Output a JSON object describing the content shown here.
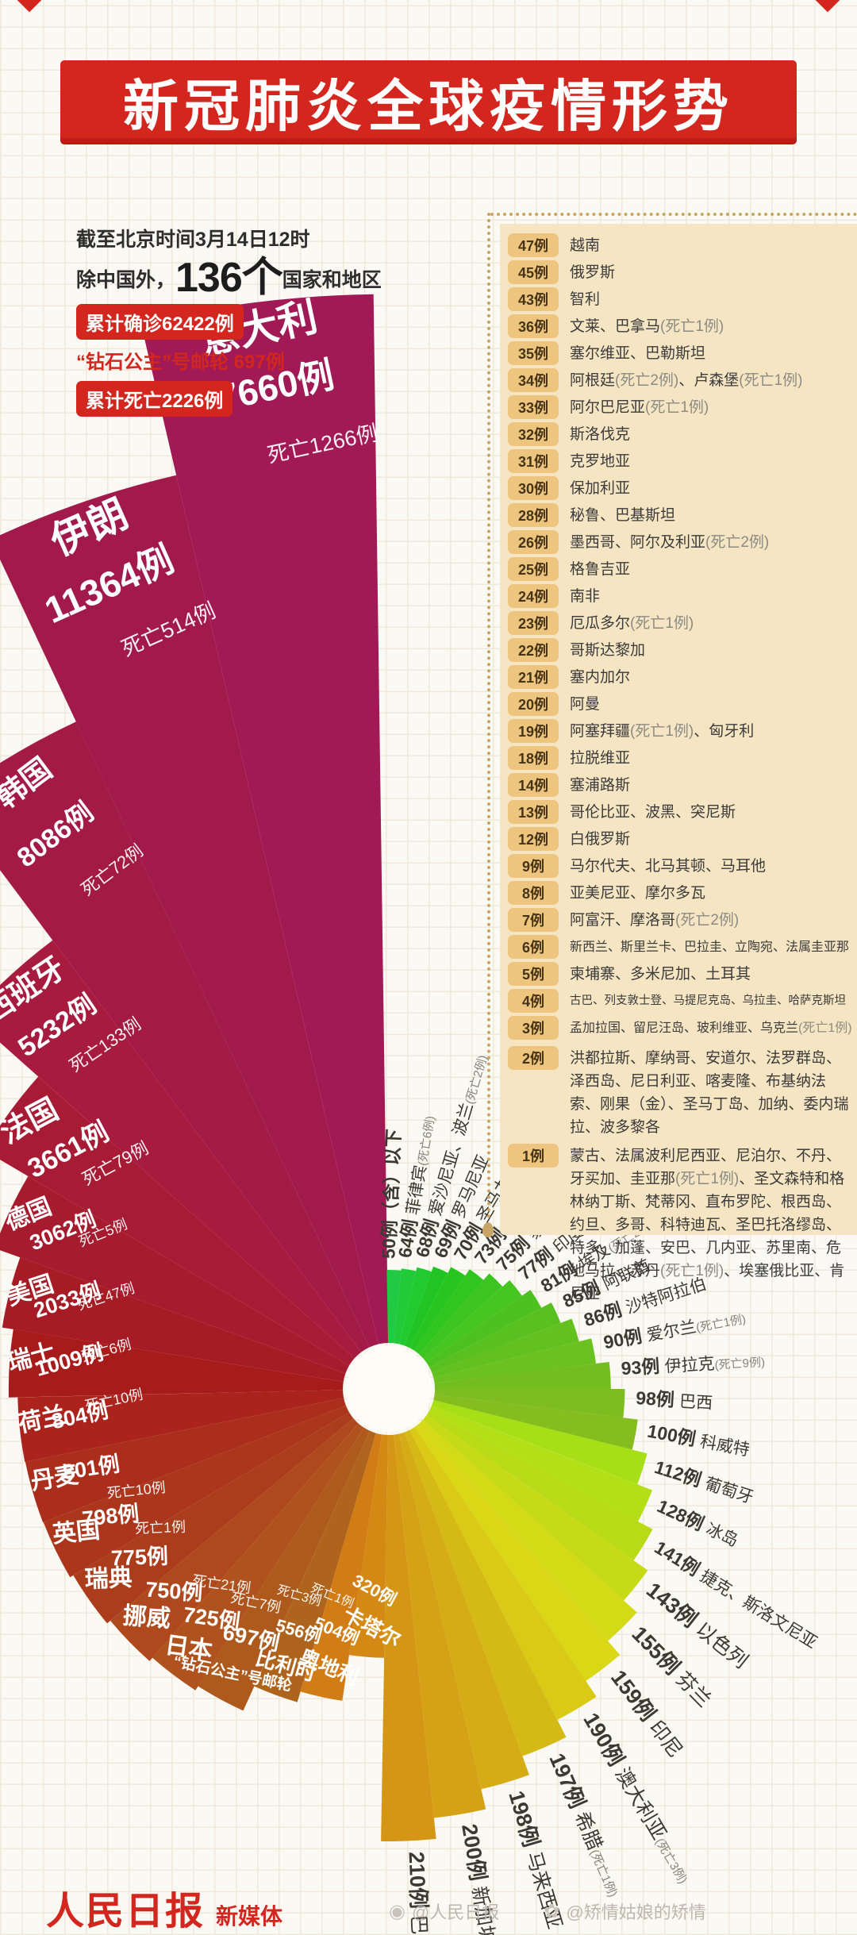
{
  "title": "新冠肺炎全球疫情形势",
  "stats": {
    "as_of": "截至北京时间3月14日12时",
    "prefix": "除中国外，",
    "countries_num": "136个",
    "countries_suffix": "国家和地区",
    "confirmed_badge": "累计确诊62422例",
    "cruise_line": "“钻石公主”号邮轮 697例",
    "deaths_badge": "累计死亡2226例"
  },
  "panel": {
    "rows": [
      {
        "badge": "47例",
        "text": "越南"
      },
      {
        "badge": "45例",
        "text": "俄罗斯"
      },
      {
        "badge": "43例",
        "text": "智利"
      },
      {
        "badge": "36例",
        "text": "文莱、巴拿马(死亡1例)"
      },
      {
        "badge": "35例",
        "text": "塞尔维亚、巴勒斯坦"
      },
      {
        "badge": "34例",
        "text": "阿根廷(死亡2例)、卢森堡(死亡1例)"
      },
      {
        "badge": "33例",
        "text": "阿尔巴尼亚(死亡1例)"
      },
      {
        "badge": "32例",
        "text": "斯洛伐克"
      },
      {
        "badge": "31例",
        "text": "克罗地亚"
      },
      {
        "badge": "30例",
        "text": "保加利亚"
      },
      {
        "badge": "28例",
        "text": "秘鲁、巴基斯坦"
      },
      {
        "badge": "26例",
        "text": "墨西哥、阿尔及利亚(死亡2例)"
      },
      {
        "badge": "25例",
        "text": "格鲁吉亚"
      },
      {
        "badge": "24例",
        "text": "南非"
      },
      {
        "badge": "23例",
        "text": "厄瓜多尔(死亡1例)"
      },
      {
        "badge": "22例",
        "text": "哥斯达黎加"
      },
      {
        "badge": "21例",
        "text": "塞内加尔"
      },
      {
        "badge": "20例",
        "text": "阿曼"
      },
      {
        "badge": "19例",
        "text": "阿塞拜疆(死亡1例)、匈牙利"
      },
      {
        "badge": "18例",
        "text": "拉脱维亚"
      },
      {
        "badge": "14例",
        "text": "塞浦路斯"
      },
      {
        "badge": "13例",
        "text": "哥伦比亚、波黑、突尼斯"
      },
      {
        "badge": "12例",
        "text": "白俄罗斯"
      },
      {
        "badge": "9例",
        "text": "马尔代夫、北马其顿、马耳他"
      },
      {
        "badge": "8例",
        "text": "亚美尼亚、摩尔多瓦"
      },
      {
        "badge": "7例",
        "text": "阿富汗、摩洛哥(死亡2例)"
      },
      {
        "badge": "6例",
        "text": "新西兰、斯里兰卡、巴拉圭、立陶宛、法属圭亚那"
      },
      {
        "badge": "5例",
        "text": "柬埔寨、多米尼加、土耳其"
      },
      {
        "badge": "4例",
        "text": "古巴、列支敦士登、马提尼克岛、乌拉圭、哈萨克斯坦"
      },
      {
        "badge": "3例",
        "text": "孟加拉国、留尼汪岛、玻利维亚、乌克兰(死亡1例)"
      },
      {
        "badge": "2例",
        "text": "洪都拉斯、摩纳哥、安道尔、法罗群岛、泽西岛、尼日利亚、喀麦隆、布基纳法索、刚果（金）、圣马丁岛、加纳、委内瑞拉、波多黎各"
      },
      {
        "badge": "1例",
        "text": "蒙古、法属波利尼西亚、尼泊尔、不丹、牙买加、圭亚那(死亡1例)、圣文森特和格林纳丁斯、梵蒂冈、直布罗陀、根西岛、约旦、多哥、科特迪瓦、圣巴托洛缪岛、特多、加蓬、安巴、几内亚、苏里南、危地马拉、苏丹(死亡1例)、埃塞俄比亚、肯尼亚"
      }
    ]
  },
  "chart_data": {
    "type": "radial_fan",
    "unit": "例",
    "note": "wedge length encodes confirmed cases per country, clockwise from top",
    "series": [
      {
        "label": "50例（含）以下",
        "value": 50,
        "cases": "",
        "deaths": "",
        "size": "small",
        "kind": "threshold"
      },
      {
        "label": "菲律宾",
        "value": 64,
        "cases": "64例",
        "deaths": "(死亡6例)",
        "size": "small"
      },
      {
        "label": "爱沙尼亚、波兰",
        "value": 68,
        "cases": "68例",
        "deaths": "(死亡2例)",
        "size": "small"
      },
      {
        "label": "罗马尼亚",
        "value": 69,
        "cases": "69例",
        "deaths": "",
        "size": "small"
      },
      {
        "label": "圣马力诺",
        "value": 70,
        "cases": "70例",
        "deaths": "(死亡2例)",
        "size": "small"
      },
      {
        "label": "泰国",
        "value": 73,
        "cases": "73例",
        "deaths": "(死亡1例)",
        "size": "small"
      },
      {
        "label": "黎巴嫩",
        "value": 75,
        "cases": "75例",
        "deaths": "(死亡3例)",
        "size": "small"
      },
      {
        "label": "印度",
        "value": 77,
        "cases": "77例",
        "deaths": "(死亡1例)",
        "size": "small"
      },
      {
        "label": "埃及",
        "value": 81,
        "cases": "81例",
        "deaths": "(死亡2例)",
        "size": "small"
      },
      {
        "label": "阿联酋",
        "value": 85,
        "cases": "85例",
        "deaths": "",
        "size": "small"
      },
      {
        "label": "沙特阿拉伯",
        "value": 86,
        "cases": "86例",
        "deaths": "",
        "size": "small"
      },
      {
        "label": "爱尔兰",
        "value": 90,
        "cases": "90例",
        "deaths": "(死亡1例)",
        "size": "small"
      },
      {
        "label": "伊拉克",
        "value": 93,
        "cases": "93例",
        "deaths": "(死亡9例)",
        "size": "small"
      },
      {
        "label": "巴西",
        "value": 98,
        "cases": "98例",
        "deaths": "",
        "size": "small"
      },
      {
        "label": "科威特",
        "value": 100,
        "cases": "100例",
        "deaths": "",
        "size": "small"
      },
      {
        "label": "葡萄牙",
        "value": 112,
        "cases": "112例",
        "deaths": "",
        "size": "small"
      },
      {
        "label": "冰岛",
        "value": 128,
        "cases": "128例",
        "deaths": "",
        "size": "small"
      },
      {
        "label": "捷克、斯洛文尼亚",
        "value": 141,
        "cases": "141例",
        "deaths": "",
        "size": "small"
      },
      {
        "label": "以色列",
        "value": 143,
        "cases": "143例",
        "deaths": "",
        "size": "small"
      },
      {
        "label": "芬兰",
        "value": 155,
        "cases": "155例",
        "deaths": "",
        "size": "small"
      },
      {
        "label": "印尼",
        "value": 159,
        "cases": "159例",
        "deaths": "",
        "size": "small"
      },
      {
        "label": "澳大利亚",
        "value": 190,
        "cases": "190例",
        "deaths": "(死亡3例)",
        "size": "small"
      },
      {
        "label": "希腊",
        "value": 197,
        "cases": "197例",
        "deaths": "(死亡1例)",
        "size": "small"
      },
      {
        "label": "马来西亚",
        "value": 198,
        "cases": "198例",
        "deaths": "",
        "size": "small"
      },
      {
        "label": "新加坡",
        "value": 200,
        "cases": "200例",
        "deaths": "",
        "size": "small"
      },
      {
        "label": "巴林",
        "value": 210,
        "cases": "210例",
        "deaths": "",
        "size": "small"
      },
      {
        "label": "卡塔尔",
        "value": 320,
        "cases": "320例",
        "deaths": "",
        "size": "big"
      },
      {
        "label": "奥地利",
        "value": 504,
        "cases": "504例",
        "deaths": "死亡1例",
        "size": "big"
      },
      {
        "label": "比利时",
        "value": 556,
        "cases": "556例",
        "deaths": "死亡3例",
        "size": "big"
      },
      {
        "label": "“钻石公主”号邮轮",
        "value": 697,
        "cases": "697例",
        "deaths": "死亡7例",
        "size": "big"
      },
      {
        "label": "日本",
        "value": 725,
        "cases": "725例",
        "deaths": "死亡21例",
        "size": "big"
      },
      {
        "label": "挪威",
        "value": 750,
        "cases": "750例",
        "deaths": "",
        "size": "big"
      },
      {
        "label": "瑞典",
        "value": 775,
        "cases": "775例",
        "deaths": "死亡1例",
        "size": "big"
      },
      {
        "label": "英国",
        "value": 798,
        "cases": "798例",
        "deaths": "死亡10例",
        "size": "big"
      },
      {
        "label": "丹麦",
        "value": 801,
        "cases": "801例",
        "deaths": "",
        "size": "big"
      },
      {
        "label": "荷兰",
        "value": 804,
        "cases": "804例",
        "deaths": "死亡10例",
        "size": "big"
      },
      {
        "label": "瑞士",
        "value": 1009,
        "cases": "1009例",
        "deaths": "死亡6例",
        "size": "big"
      },
      {
        "label": "美国",
        "value": 2033,
        "cases": "2033例",
        "deaths": "死亡47例",
        "size": "big"
      },
      {
        "label": "德国",
        "value": 3062,
        "cases": "3062例",
        "deaths": "死亡5例",
        "size": "big"
      },
      {
        "label": "法国",
        "value": 3661,
        "cases": "3661例",
        "deaths": "死亡79例",
        "size": "big"
      },
      {
        "label": "西班牙",
        "value": 5232,
        "cases": "5232例",
        "deaths": "死亡133例",
        "size": "big"
      },
      {
        "label": "韩国",
        "value": 8086,
        "cases": "8086例",
        "deaths": "死亡72例",
        "size": "big"
      },
      {
        "label": "伊朗",
        "value": 11364,
        "cases": "11364例",
        "deaths": "死亡514例",
        "size": "big"
      },
      {
        "label": "意大利",
        "value": 17660,
        "cases": "17660例",
        "deaths": "死亡1266例",
        "size": "big"
      }
    ]
  },
  "colors": {
    "accent_red": "#d2261e",
    "panel_bg": "#f6e5c3",
    "badge_bg": "#eec57e",
    "dot_tan": "#c9a467",
    "text_dark": "#3b3b3b",
    "note_gray": "#8b8b85"
  },
  "icons": {
    "watermark_icon_1": "◉",
    "watermark_icon_2": "✿"
  },
  "footer": {
    "brand_main": "人民日报",
    "brand_sub": "新媒体",
    "watermark_1": "@人民日报",
    "watermark_2": "@矫情姑娘的矫情"
  }
}
